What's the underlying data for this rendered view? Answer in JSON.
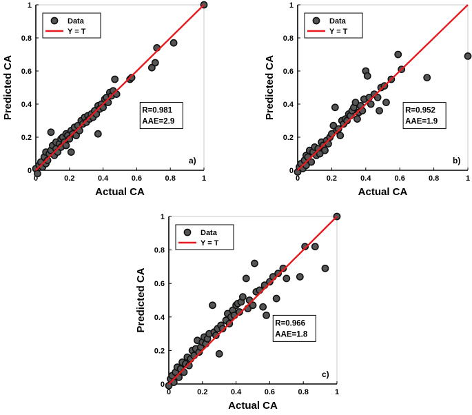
{
  "chart_data": [
    {
      "type": "scatter",
      "xlabel": "Actual CA",
      "ylabel": "Predicted CA",
      "xlim": [
        0,
        1
      ],
      "ylim": [
        0,
        1
      ],
      "x_ticks": [
        "0",
        "0.2",
        "0.4",
        "0.6",
        "0.8",
        "1"
      ],
      "y_ticks": [
        "0",
        "0.2",
        "0.4",
        "0.6",
        "0.8",
        "1"
      ],
      "legend": {
        "position": "top-left",
        "entries": [
          "Data",
          "Y = T"
        ]
      },
      "stats": [
        "R=0.981",
        "AAE=2.9"
      ],
      "panel_tag": "a)",
      "grid": false,
      "colors": {
        "marker": "#555555",
        "line": "#e8191f"
      },
      "series": [
        {
          "name": "Data",
          "points": [
            [
              0,
              0.01
            ],
            [
              0.01,
              -0.02
            ],
            [
              0.02,
              0.03
            ],
            [
              0.03,
              0.05
            ],
            [
              0.04,
              0.02
            ],
            [
              0.05,
              0.08
            ],
            [
              0.06,
              0.11
            ],
            [
              0.06,
              0.04
            ],
            [
              0.07,
              0.06
            ],
            [
              0.08,
              0.1
            ],
            [
              0.09,
              0.12
            ],
            [
              0.09,
              0.23
            ],
            [
              0.1,
              0.15
            ],
            [
              0.11,
              0.09
            ],
            [
              0.12,
              0.13
            ],
            [
              0.12,
              0.17
            ],
            [
              0.13,
              0.11
            ],
            [
              0.14,
              0.16
            ],
            [
              0.15,
              0.14
            ],
            [
              0.15,
              0.19
            ],
            [
              0.16,
              0.2
            ],
            [
              0.17,
              0.17
            ],
            [
              0.18,
              0.15
            ],
            [
              0.18,
              0.22
            ],
            [
              0.19,
              0.21
            ],
            [
              0.2,
              0.19
            ],
            [
              0.21,
              0.24
            ],
            [
              0.21,
              0.11
            ],
            [
              0.22,
              0.22
            ],
            [
              0.23,
              0.26
            ],
            [
              0.24,
              0.21
            ],
            [
              0.25,
              0.27
            ],
            [
              0.26,
              0.24
            ],
            [
              0.27,
              0.3
            ],
            [
              0.28,
              0.28
            ],
            [
              0.29,
              0.32
            ],
            [
              0.3,
              0.29
            ],
            [
              0.31,
              0.33
            ],
            [
              0.32,
              0.31
            ],
            [
              0.33,
              0.34
            ],
            [
              0.34,
              0.32
            ],
            [
              0.35,
              0.36
            ],
            [
              0.36,
              0.34
            ],
            [
              0.37,
              0.39
            ],
            [
              0.37,
              0.22
            ],
            [
              0.38,
              0.37
            ],
            [
              0.39,
              0.4
            ],
            [
              0.4,
              0.38
            ],
            [
              0.41,
              0.43
            ],
            [
              0.42,
              0.44
            ],
            [
              0.43,
              0.41
            ],
            [
              0.44,
              0.47
            ],
            [
              0.45,
              0.45
            ],
            [
              0.46,
              0.48
            ],
            [
              0.47,
              0.55
            ],
            [
              0.48,
              0.46
            ],
            [
              0.56,
              0.55
            ],
            [
              0.57,
              0.56
            ],
            [
              0.69,
              0.62
            ],
            [
              0.71,
              0.65
            ],
            [
              0.72,
              0.74
            ],
            [
              0.82,
              0.77
            ],
            [
              1,
              1
            ]
          ]
        },
        {
          "name": "Y = T",
          "line": [
            [
              0,
              0
            ],
            [
              1,
              1
            ]
          ]
        }
      ]
    },
    {
      "type": "scatter",
      "xlabel": "Actual CA",
      "ylabel": "Predicted CA",
      "xlim": [
        0,
        1
      ],
      "ylim": [
        0,
        1
      ],
      "x_ticks": [
        "0",
        "0.2",
        "0.4",
        "0.6",
        "0.8",
        "1"
      ],
      "y_ticks": [
        "0",
        "0.2",
        "0.4",
        "0.6",
        "0.8",
        "1"
      ],
      "legend": {
        "position": "top-left",
        "entries": [
          "Data",
          "Y = T"
        ]
      },
      "stats": [
        "R=0.952",
        "AAE=1.9"
      ],
      "panel_tag": "b)",
      "grid": false,
      "colors": {
        "marker": "#555555",
        "line": "#e8191f"
      },
      "series": [
        {
          "name": "Data",
          "points": [
            [
              0,
              -0.01
            ],
            [
              0.01,
              0.02
            ],
            [
              0.02,
              0.04
            ],
            [
              0.03,
              0.01
            ],
            [
              0.04,
              0.06
            ],
            [
              0.05,
              0.09
            ],
            [
              0.05,
              0.03
            ],
            [
              0.06,
              0.08
            ],
            [
              0.07,
              0.12
            ],
            [
              0.08,
              0.05
            ],
            [
              0.09,
              0.11
            ],
            [
              0.1,
              0.14
            ],
            [
              0.11,
              0.09
            ],
            [
              0.12,
              0.13
            ],
            [
              0.13,
              0.1
            ],
            [
              0.14,
              0.17
            ],
            [
              0.15,
              0.15
            ],
            [
              0.16,
              0.12
            ],
            [
              0.17,
              0.18
            ],
            [
              0.18,
              0.16
            ],
            [
              0.19,
              0.2
            ],
            [
              0.2,
              0.22
            ],
            [
              0.21,
              0.27
            ],
            [
              0.22,
              0.38
            ],
            [
              0.23,
              0.24
            ],
            [
              0.24,
              0.25
            ],
            [
              0.25,
              0.21
            ],
            [
              0.26,
              0.3
            ],
            [
              0.27,
              0.28
            ],
            [
              0.28,
              0.31
            ],
            [
              0.29,
              0.3
            ],
            [
              0.3,
              0.34
            ],
            [
              0.31,
              0.33
            ],
            [
              0.32,
              0.36
            ],
            [
              0.33,
              0.38
            ],
            [
              0.34,
              0.41
            ],
            [
              0.35,
              0.31
            ],
            [
              0.36,
              0.35
            ],
            [
              0.37,
              0.39
            ],
            [
              0.38,
              0.36
            ],
            [
              0.39,
              0.43
            ],
            [
              0.4,
              0.6
            ],
            [
              0.41,
              0.57
            ],
            [
              0.42,
              0.44
            ],
            [
              0.43,
              0.4
            ],
            [
              0.45,
              0.46
            ],
            [
              0.47,
              0.44
            ],
            [
              0.48,
              0.36
            ],
            [
              0.49,
              0.5
            ],
            [
              0.51,
              0.51
            ],
            [
              0.52,
              0.41
            ],
            [
              0.55,
              0.55
            ],
            [
              0.59,
              0.7
            ],
            [
              0.61,
              0.61
            ],
            [
              0.76,
              0.56
            ],
            [
              1,
              0.69
            ]
          ]
        },
        {
          "name": "Y = T",
          "line": [
            [
              0,
              0
            ],
            [
              1,
              1
            ]
          ]
        }
      ]
    },
    {
      "type": "scatter",
      "xlabel": "Actual CA",
      "ylabel": "Predicted CA",
      "xlim": [
        0,
        1
      ],
      "ylim": [
        0,
        1
      ],
      "x_ticks": [
        "0",
        "0.2",
        "0.4",
        "0.6",
        "0.8",
        "1"
      ],
      "y_ticks": [
        "0",
        "0.2",
        "0.4",
        "0.6",
        "0.8",
        "1"
      ],
      "legend": {
        "position": "top-left",
        "entries": [
          "Data",
          "Y = T"
        ]
      },
      "stats": [
        "R=0.966",
        "AAE=1.8"
      ],
      "panel_tag": "c)",
      "grid": false,
      "colors": {
        "marker": "#555555",
        "line": "#e8191f"
      },
      "series": [
        {
          "name": "Data",
          "points": [
            [
              0,
              -0.01
            ],
            [
              0.01,
              0.03
            ],
            [
              0.02,
              0.05
            ],
            [
              0.03,
              0.01
            ],
            [
              0.04,
              0.07
            ],
            [
              0.05,
              0.1
            ],
            [
              0.06,
              0.04
            ],
            [
              0.07,
              0.09
            ],
            [
              0.08,
              0.13
            ],
            [
              0.09,
              0.07
            ],
            [
              0.1,
              0.12
            ],
            [
              0.11,
              0.16
            ],
            [
              0.12,
              0.11
            ],
            [
              0.13,
              0.15
            ],
            [
              0.14,
              0.2
            ],
            [
              0.15,
              0.17
            ],
            [
              0.16,
              0.21
            ],
            [
              0.17,
              0.26
            ],
            [
              0.18,
              0.19
            ],
            [
              0.19,
              0.22
            ],
            [
              0.2,
              0.25
            ],
            [
              0.21,
              0.28
            ],
            [
              0.22,
              0.24
            ],
            [
              0.23,
              0.27
            ],
            [
              0.24,
              0.3
            ],
            [
              0.26,
              0.47
            ],
            [
              0.27,
              0.31
            ],
            [
              0.28,
              0.29
            ],
            [
              0.29,
              0.33
            ],
            [
              0.3,
              0.18
            ],
            [
              0.31,
              0.35
            ],
            [
              0.32,
              0.33
            ],
            [
              0.34,
              0.38
            ],
            [
              0.35,
              0.42
            ],
            [
              0.36,
              0.36
            ],
            [
              0.37,
              0.4
            ],
            [
              0.38,
              0.44
            ],
            [
              0.39,
              0.41
            ],
            [
              0.4,
              0.47
            ],
            [
              0.41,
              0.48
            ],
            [
              0.42,
              0.43
            ],
            [
              0.43,
              0.49
            ],
            [
              0.44,
              0.52
            ],
            [
              0.46,
              0.63
            ],
            [
              0.47,
              0.45
            ],
            [
              0.48,
              0.5
            ],
            [
              0.5,
              0.47
            ],
            [
              0.51,
              0.72
            ],
            [
              0.52,
              0.55
            ],
            [
              0.54,
              0.56
            ],
            [
              0.56,
              0.46
            ],
            [
              0.57,
              0.59
            ],
            [
              0.58,
              0.41
            ],
            [
              0.6,
              0.61
            ],
            [
              0.62,
              0.64
            ],
            [
              0.64,
              0.51
            ],
            [
              0.65,
              0.66
            ],
            [
              0.68,
              0.69
            ],
            [
              0.7,
              0.63
            ],
            [
              0.78,
              0.64
            ],
            [
              0.81,
              0.82
            ],
            [
              0.87,
              0.82
            ],
            [
              0.93,
              0.69
            ],
            [
              1,
              1
            ]
          ]
        },
        {
          "name": "Y = T",
          "line": [
            [
              0,
              0
            ],
            [
              1,
              1
            ]
          ]
        }
      ]
    }
  ]
}
